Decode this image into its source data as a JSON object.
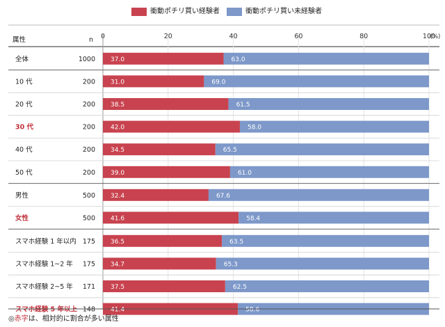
{
  "chart_data": {
    "type": "bar",
    "stacked": true,
    "orientation": "horizontal",
    "title": "",
    "xlabel": "",
    "ylabel": "",
    "xlim": [
      0,
      100
    ],
    "x_ticks": [
      "0",
      "20",
      "40",
      "60",
      "80",
      "100"
    ],
    "unit_label": "(%)",
    "header_attribute": "属性",
    "header_n": "n",
    "categories": [
      "全体",
      "10 代",
      "20 代",
      "30 代",
      "40 代",
      "50 代",
      "男性",
      "女性",
      "スマホ経験 1 年以内",
      "スマホ経験 1~2 年",
      "スマホ経験 2~5 年",
      "スマホ経験 5 年以上"
    ],
    "n": [
      "1000",
      "200",
      "200",
      "200",
      "200",
      "200",
      "500",
      "500",
      "175",
      "175",
      "171",
      "148"
    ],
    "highlight": [
      false,
      false,
      false,
      true,
      false,
      false,
      false,
      true,
      false,
      false,
      false,
      true
    ],
    "series": [
      {
        "name": "衝動ポチリ買い経験者",
        "color": "#c8434f",
        "values": [
          37.0,
          31.0,
          38.5,
          42.0,
          34.5,
          39.0,
          32.4,
          41.6,
          36.5,
          34.7,
          37.5,
          41.4
        ],
        "labels": [
          "37.0",
          "31.0",
          "38.5",
          "42.0",
          "34.5",
          "39.0",
          "32.4",
          "41.6",
          "36.5",
          "34.7",
          "37.5",
          "41.4"
        ]
      },
      {
        "name": "衝動ポチリ買い未経験者",
        "color": "#7d98c9",
        "values": [
          63.0,
          69.0,
          61.5,
          58.0,
          65.5,
          61.0,
          67.6,
          58.4,
          63.5,
          65.3,
          62.5,
          58.6
        ],
        "labels": [
          "63.0",
          "69.0",
          "61.5",
          "58.0",
          "65.5",
          "61.0",
          "67.6",
          "58.4",
          "63.5",
          "65.3",
          "62.5",
          "58.6"
        ]
      }
    ],
    "legend_position": "top-center",
    "grid": true,
    "highlight_color": "#c0303a"
  },
  "footnote": {
    "prefix": "◎",
    "red_part": "赤字",
    "rest": "は、相対的に割合が多い属性"
  }
}
